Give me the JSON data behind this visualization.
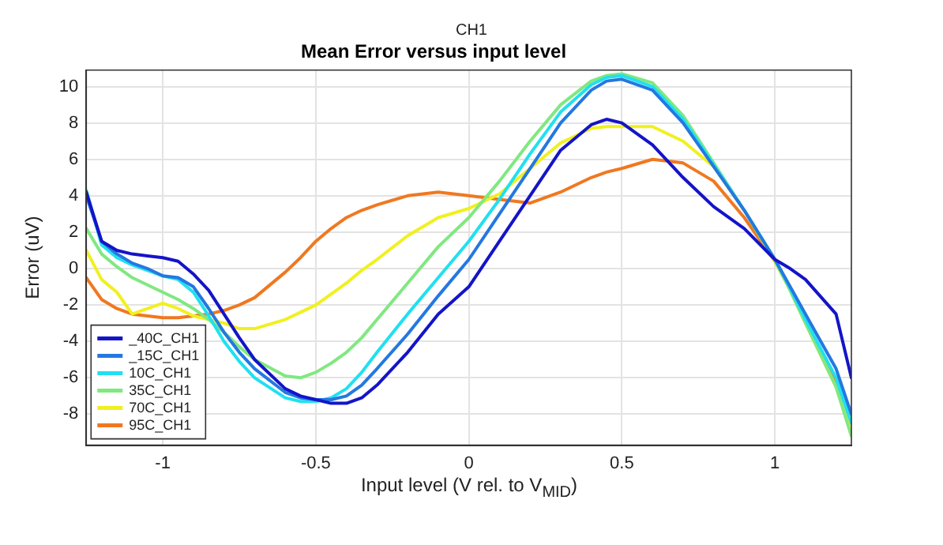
{
  "chart_data": {
    "type": "line",
    "subtitle": "CH1",
    "title": "Mean Error versus input level",
    "xlabel": "Input level (V rel. to V$_{MID}$)",
    "ylabel": "Error (uV)",
    "xlim": [
      -1.25,
      1.25
    ],
    "xticks": [
      -1,
      -0.5,
      0,
      0.5,
      1
    ],
    "ylim": [
      -9.7,
      10.9
    ],
    "yticks": [
      -8,
      -6,
      -4,
      -2,
      0,
      2,
      4,
      6,
      8,
      10
    ],
    "grid": true,
    "legend": "bottom left",
    "marker": "none",
    "line_style": "solid",
    "x": [
      -1.25,
      -1.2,
      -1.15,
      -1.1,
      -1.05,
      -1.0,
      -0.95,
      -0.9,
      -0.85,
      -0.8,
      -0.75,
      -0.7,
      -0.6,
      -0.55,
      -0.5,
      -0.45,
      -0.4,
      -0.35,
      -0.3,
      -0.2,
      -0.1,
      0,
      0.1,
      0.2,
      0.3,
      0.4,
      0.45,
      0.5,
      0.6,
      0.7,
      0.8,
      0.9,
      1.0,
      1.05,
      1.1,
      1.2,
      1.25
    ],
    "series": [
      {
        "name": "_40C_CH1",
        "color": "#1414c8",
        "values": [
          4.2,
          1.5,
          1.0,
          0.8,
          0.7,
          0.6,
          0.4,
          -0.3,
          -1.2,
          -2.5,
          -3.8,
          -5.0,
          -6.6,
          -7.0,
          -7.2,
          -7.4,
          -7.4,
          -7.1,
          -6.4,
          -4.6,
          -2.5,
          -1.0,
          1.5,
          4.0,
          6.5,
          7.9,
          8.2,
          8.0,
          6.8,
          5.0,
          3.4,
          2.2,
          0.5,
          0,
          -0.6,
          -2.5,
          -6.0
        ]
      },
      {
        "name": "_15C_CH1",
        "color": "#2478e0",
        "values": [
          4.0,
          1.5,
          0.8,
          0.3,
          0.0,
          -0.4,
          -0.5,
          -1.0,
          -2.2,
          -3.5,
          -4.6,
          -5.5,
          -6.8,
          -7.1,
          -7.2,
          -7.2,
          -7.0,
          -6.4,
          -5.5,
          -3.6,
          -1.5,
          0.5,
          3.0,
          5.5,
          8.0,
          9.8,
          10.3,
          10.4,
          9.8,
          8.0,
          5.6,
          3.2,
          0.5,
          -1.0,
          -2.5,
          -5.5,
          -8.0
        ]
      },
      {
        "name": "10C_CH1",
        "color": "#20e0f0",
        "values": [
          4.3,
          1.3,
          0.6,
          0.2,
          -0.1,
          -0.4,
          -0.6,
          -1.3,
          -2.6,
          -4.0,
          -5.1,
          -6.0,
          -7.1,
          -7.3,
          -7.3,
          -7.1,
          -6.6,
          -5.7,
          -4.6,
          -2.5,
          -0.5,
          1.5,
          3.8,
          6.3,
          8.6,
          10.1,
          10.5,
          10.6,
          10.0,
          8.2,
          5.7,
          3.2,
          0.5,
          -1.1,
          -2.8,
          -6.0,
          -8.5
        ]
      },
      {
        "name": "35C_CH1",
        "color": "#80e880",
        "values": [
          2.2,
          0.8,
          0.1,
          -0.5,
          -0.9,
          -1.3,
          -1.7,
          -2.2,
          -2.8,
          -3.5,
          -4.3,
          -5.0,
          -5.9,
          -6.0,
          -5.7,
          -5.2,
          -4.6,
          -3.8,
          -2.8,
          -0.8,
          1.2,
          2.8,
          4.8,
          7.0,
          9.0,
          10.3,
          10.6,
          10.7,
          10.2,
          8.4,
          5.8,
          3.2,
          0.5,
          -1.2,
          -3.0,
          -6.5,
          -9.2
        ]
      },
      {
        "name": "70C_CH1",
        "color": "#f0f020",
        "values": [
          1.0,
          -0.6,
          -1.3,
          -2.5,
          -2.2,
          -1.9,
          -2.2,
          -2.6,
          -2.8,
          -3.0,
          -3.3,
          -3.3,
          -2.8,
          -2.4,
          -2.0,
          -1.4,
          -0.8,
          -0.1,
          0.5,
          1.8,
          2.8,
          3.3,
          4.1,
          5.5,
          6.9,
          7.7,
          7.8,
          7.8,
          7.8,
          7.0,
          5.6,
          3.2,
          0.4,
          -1.2,
          -3.0,
          -6.5,
          -9.0
        ]
      },
      {
        "name": "95C_CH1",
        "color": "#f07820",
        "values": [
          -0.5,
          -1.7,
          -2.2,
          -2.5,
          -2.6,
          -2.7,
          -2.7,
          -2.6,
          -2.5,
          -2.3,
          -2.0,
          -1.6,
          -0.2,
          0.6,
          1.5,
          2.2,
          2.8,
          3.2,
          3.5,
          4.0,
          4.2,
          4.0,
          3.8,
          3.6,
          4.2,
          5.0,
          5.3,
          5.5,
          6.0,
          5.8,
          4.8,
          2.8,
          0.4,
          -1.1,
          -2.8,
          -6.2,
          -8.5
        ]
      }
    ]
  }
}
